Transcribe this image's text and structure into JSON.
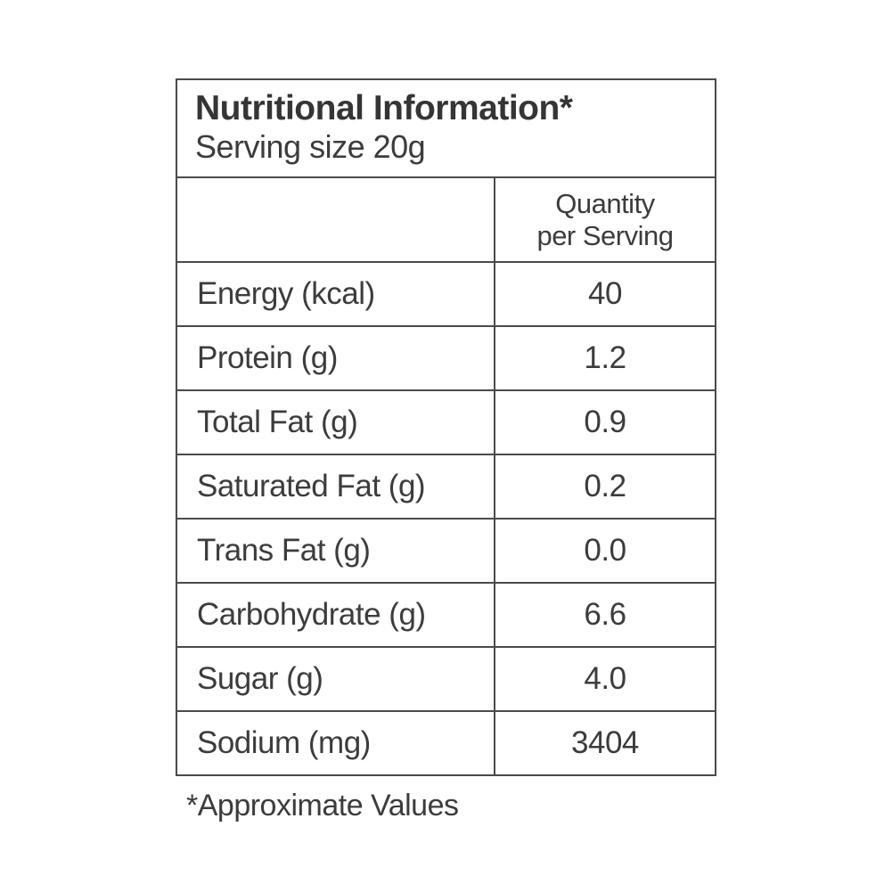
{
  "label": {
    "title": "Nutritional Information*",
    "serving_size": "Serving size 20g",
    "quantity_header_line1": "Quantity",
    "quantity_header_line2": "per Serving",
    "rows": [
      {
        "label": "Energy (kcal)",
        "value": "40"
      },
      {
        "label": "Protein (g)",
        "value": "1.2"
      },
      {
        "label": "Total Fat (g)",
        "value": "0.9"
      },
      {
        "label": "Saturated Fat (g)",
        "value": "0.2"
      },
      {
        "label": "Trans Fat (g)",
        "value": "0.0"
      },
      {
        "label": "Carbohydrate (g)",
        "value": "6.6"
      },
      {
        "label": "Sugar (g)",
        "value": "4.0"
      },
      {
        "label": "Sodium (mg)",
        "value": "3404"
      }
    ],
    "footnote": "*Approximate Values",
    "colors": {
      "text": "#3c3c3c",
      "border": "#4a4a4a",
      "background": "#ffffff"
    }
  }
}
